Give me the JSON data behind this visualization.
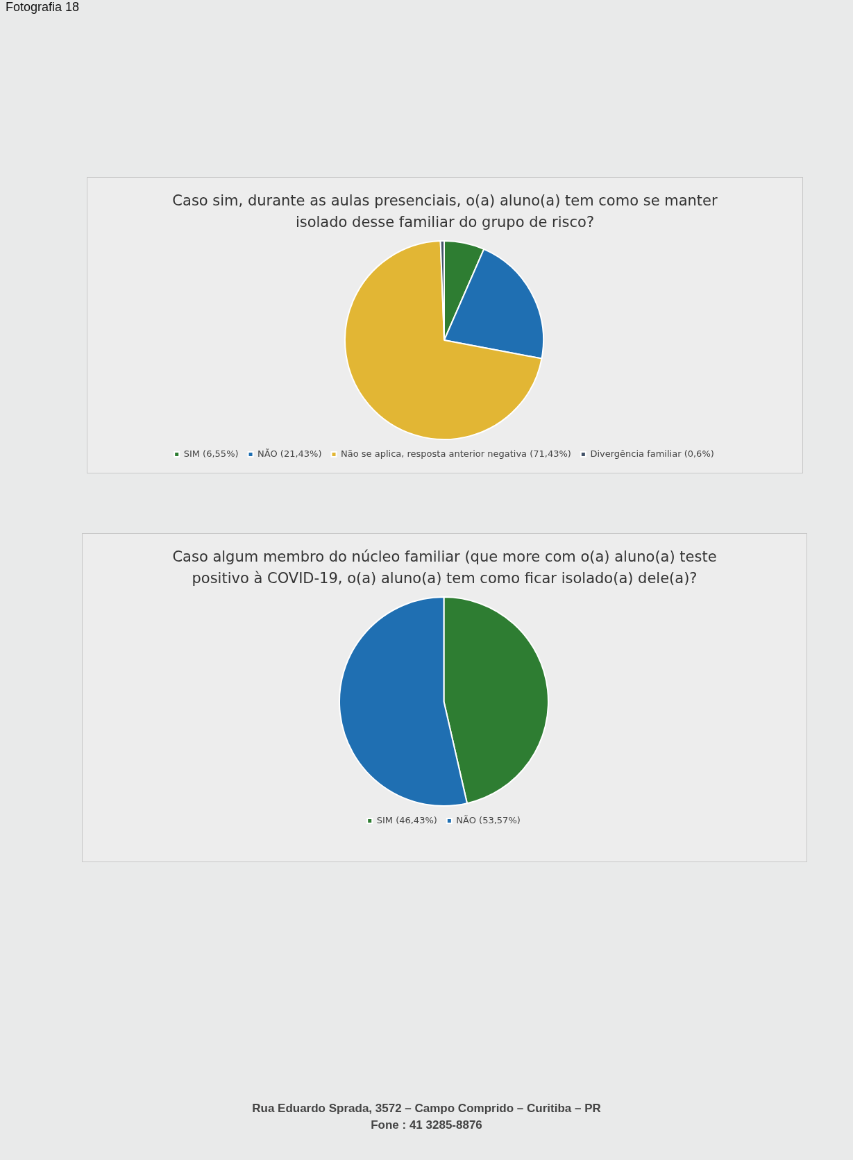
{
  "chart_data": [
    {
      "type": "pie",
      "title": "Caso sim, durante as aulas presenciais, o(a) aluno(a) tem como se manter isolado desse familiar do grupo de risco?",
      "categories": [
        "SIM (6,55%)",
        "NÃO (21,43%)",
        "Não se aplica, resposta anterior negativa (71,43%)",
        "Divergência familiar (0,6%)"
      ],
      "values": [
        6.55,
        21.43,
        71.43,
        0.6
      ],
      "colors": [
        "#2e7d32",
        "#1f6fb2",
        "#e2b634",
        "#44546a"
      ],
      "legend": "bottom",
      "annotations": [
        "Fotografia 18"
      ]
    },
    {
      "type": "pie",
      "title": "Caso algum membro do núcleo familiar (que more com o(a) aluno(a) teste positivo à COVID-19, o(a) aluno(a) tem como ficar isolado(a) dele(a)?",
      "categories": [
        "SIM (46,43%)",
        "NÃO (53,57%)"
      ],
      "values": [
        46.43,
        53.57
      ],
      "colors": [
        "#2e7d32",
        "#1f6fb2"
      ],
      "legend": "bottom",
      "annotations": [
        "Rua Eduardo Sprada, 3572 – Campo Comprido – Curitiba – PR",
        "Fone : 41 3285-8876"
      ]
    }
  ]
}
